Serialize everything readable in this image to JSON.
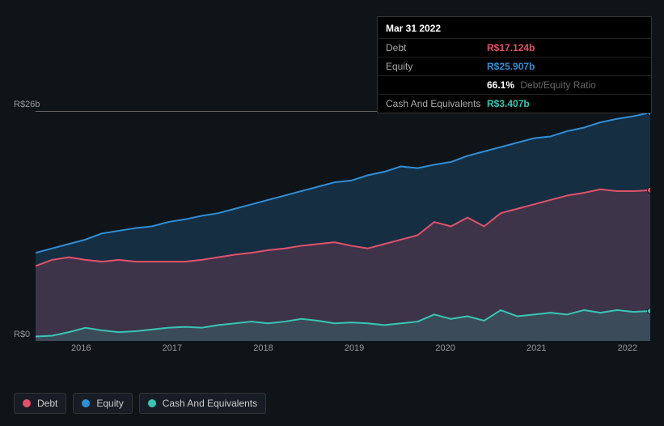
{
  "tooltip": {
    "date": "Mar 31 2022",
    "rows": [
      {
        "label": "Debt",
        "value": "R$17.124b",
        "color": "#e2516a"
      },
      {
        "label": "Equity",
        "value": "R$25.907b",
        "color": "#2f8fd8"
      },
      {
        "label": "",
        "value": "66.1%",
        "extra": "Debt/Equity Ratio",
        "color": "#ffffff"
      },
      {
        "label": "Cash And Equivalents",
        "value": "R$3.407b",
        "color": "#38c6b4"
      }
    ]
  },
  "chart": {
    "ylabel_top": "R$26b",
    "ylabel_bottom": "R$0",
    "ymax": 26,
    "xlabels": [
      "2016",
      "2017",
      "2018",
      "2019",
      "2020",
      "2021",
      "2022"
    ],
    "plot_bg": "#0f1419",
    "gridline_color": "#666666",
    "series": [
      {
        "name": "Equity",
        "color": "#2f8fd8",
        "fill": "rgba(47,143,216,0.22)",
        "data": [
          10.0,
          10.5,
          11.0,
          11.5,
          12.2,
          12.5,
          12.8,
          13.0,
          13.5,
          13.8,
          14.2,
          14.5,
          15.0,
          15.5,
          16.0,
          16.5,
          17.0,
          17.5,
          18.0,
          18.2,
          18.8,
          19.2,
          19.8,
          19.6,
          20.0,
          20.3,
          21.0,
          21.5,
          22.0,
          22.5,
          23.0,
          23.2,
          23.8,
          24.2,
          24.8,
          25.2,
          25.5,
          25.9
        ],
        "marker_end": true
      },
      {
        "name": "Debt",
        "color": "#e2516a",
        "fill": "rgba(226,81,106,0.20)",
        "data": [
          8.5,
          9.2,
          9.5,
          9.2,
          9.0,
          9.2,
          9.0,
          9.0,
          9.0,
          9.0,
          9.2,
          9.5,
          9.8,
          10.0,
          10.3,
          10.5,
          10.8,
          11.0,
          11.2,
          10.8,
          10.5,
          11.0,
          11.5,
          12.0,
          13.5,
          13.0,
          14.0,
          13.0,
          14.5,
          15.0,
          15.5,
          16.0,
          16.5,
          16.8,
          17.2,
          17.0,
          17.0,
          17.1
        ],
        "marker_end": true
      },
      {
        "name": "Cash And Equivalents",
        "color": "#38c6b4",
        "fill": "rgba(56,198,180,0.16)",
        "data": [
          0.5,
          0.6,
          1.0,
          1.5,
          1.2,
          1.0,
          1.1,
          1.3,
          1.5,
          1.6,
          1.5,
          1.8,
          2.0,
          2.2,
          2.0,
          2.2,
          2.5,
          2.3,
          2.0,
          2.1,
          2.0,
          1.8,
          2.0,
          2.2,
          3.0,
          2.5,
          2.8,
          2.3,
          3.5,
          2.8,
          3.0,
          3.2,
          3.0,
          3.5,
          3.2,
          3.5,
          3.3,
          3.4
        ],
        "marker_end": true
      }
    ]
  },
  "legend": [
    {
      "label": "Debt",
      "color": "#e2516a"
    },
    {
      "label": "Equity",
      "color": "#2f8fd8"
    },
    {
      "label": "Cash And Equivalents",
      "color": "#38c6b4"
    }
  ]
}
